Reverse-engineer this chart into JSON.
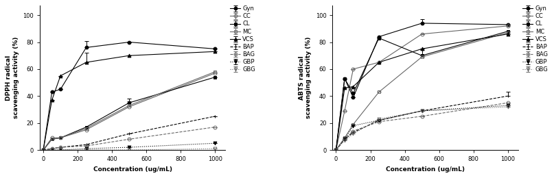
{
  "x": [
    0,
    50,
    100,
    250,
    500,
    1000
  ],
  "dpph": {
    "Gyn": [
      0,
      43,
      45,
      76,
      80,
      75
    ],
    "CC": [
      0,
      9,
      9,
      15,
      32,
      57
    ],
    "CL": [
      0,
      8,
      9,
      17,
      35,
      54
    ],
    "MC": [
      0,
      8,
      9,
      16,
      33,
      58
    ],
    "VCS": [
      0,
      37,
      55,
      65,
      70,
      73
    ],
    "BAP": [
      0,
      1,
      2,
      4,
      12,
      25
    ],
    "BAG": [
      0,
      1,
      2,
      3,
      8,
      17
    ],
    "GBP": [
      0,
      0,
      0,
      1,
      2,
      5
    ],
    "GBG": [
      0,
      0,
      0,
      0,
      0,
      1
    ]
  },
  "dpph_err": {
    "Gyn": [
      0,
      0,
      0,
      5,
      0,
      0
    ],
    "CC": [
      0,
      0,
      0,
      0,
      3,
      0
    ],
    "CL": [
      0,
      0,
      0,
      0,
      3,
      0
    ],
    "MC": [
      0,
      0,
      0,
      0,
      3,
      0
    ],
    "VCS": [
      0,
      0,
      0,
      7,
      0,
      0
    ],
    "BAP": [
      0,
      0,
      0,
      0,
      0,
      0
    ],
    "BAG": [
      0,
      0,
      0,
      0,
      0,
      0
    ],
    "GBP": [
      0,
      0,
      0,
      0,
      0,
      0
    ],
    "GBG": [
      0,
      0,
      0,
      0,
      0,
      0
    ]
  },
  "abts": {
    "Gyn": [
      0,
      53,
      39,
      84,
      94,
      93
    ],
    "CC": [
      0,
      29,
      60,
      65,
      86,
      92
    ],
    "CL": [
      0,
      53,
      42,
      83,
      70,
      88
    ],
    "MC": [
      0,
      9,
      19,
      43,
      69,
      87
    ],
    "VCS": [
      0,
      46,
      47,
      65,
      75,
      86
    ],
    "BAP": [
      0,
      8,
      13,
      22,
      29,
      40
    ],
    "BAG": [
      0,
      8,
      14,
      21,
      25,
      35
    ],
    "GBP": [
      0,
      8,
      18,
      22,
      29,
      33
    ],
    "GBG": [
      0,
      7,
      12,
      23,
      29,
      32
    ]
  },
  "abts_err": {
    "Gyn": [
      0,
      0,
      0,
      0,
      3,
      0
    ],
    "CC": [
      0,
      0,
      0,
      0,
      0,
      0
    ],
    "CL": [
      0,
      0,
      0,
      0,
      4,
      0
    ],
    "MC": [
      0,
      0,
      0,
      0,
      0,
      0
    ],
    "VCS": [
      0,
      0,
      0,
      0,
      0,
      0
    ],
    "BAP": [
      0,
      0,
      0,
      0,
      0,
      3
    ],
    "BAG": [
      0,
      0,
      0,
      0,
      0,
      0
    ],
    "GBP": [
      0,
      0,
      0,
      0,
      0,
      0
    ],
    "GBG": [
      0,
      0,
      0,
      0,
      0,
      0
    ]
  },
  "series_styles": {
    "Gyn": {
      "color": "#000000",
      "marker": "o",
      "linestyle": "-",
      "fillstyle": "full",
      "dashes": []
    },
    "CC": {
      "color": "#666666",
      "marker": "o",
      "linestyle": "-",
      "fillstyle": "none",
      "dashes": []
    },
    "CL": {
      "color": "#000000",
      "marker": "s",
      "linestyle": "-",
      "fillstyle": "full",
      "dashes": []
    },
    "MC": {
      "color": "#666666",
      "marker": "s",
      "linestyle": "-",
      "fillstyle": "none",
      "dashes": []
    },
    "VCS": {
      "color": "#000000",
      "marker": "^",
      "linestyle": "-",
      "fillstyle": "full",
      "dashes": []
    },
    "BAP": {
      "color": "#000000",
      "marker": "+",
      "linestyle": "--",
      "fillstyle": "full",
      "dashes": [
        4,
        2
      ]
    },
    "BAG": {
      "color": "#666666",
      "marker": "o",
      "linestyle": "--",
      "fillstyle": "none",
      "dashes": [
        4,
        2
      ]
    },
    "GBP": {
      "color": "#000000",
      "marker": "v",
      "linestyle": ":",
      "fillstyle": "full",
      "dashes": [
        1,
        2
      ]
    },
    "GBG": {
      "color": "#666666",
      "marker": "v",
      "linestyle": ":",
      "fillstyle": "none",
      "dashes": [
        1,
        2
      ]
    }
  },
  "ylabel_dpph": "DPPH radical\nscavenging activity (%)",
  "ylabel_abts": "ABTS radical\nscavenging activity (%)",
  "xlabel": "Concentration (ug/mL)",
  "ylim": [
    0,
    107
  ],
  "yticks": [
    0,
    20,
    40,
    60,
    80,
    100
  ],
  "xticks": [
    0,
    200,
    400,
    600,
    800,
    1000
  ],
  "legend_order": [
    "Gyn",
    "CC",
    "CL",
    "MC",
    "VCS",
    "BAP",
    "BAG",
    "GBP",
    "GBG"
  ]
}
